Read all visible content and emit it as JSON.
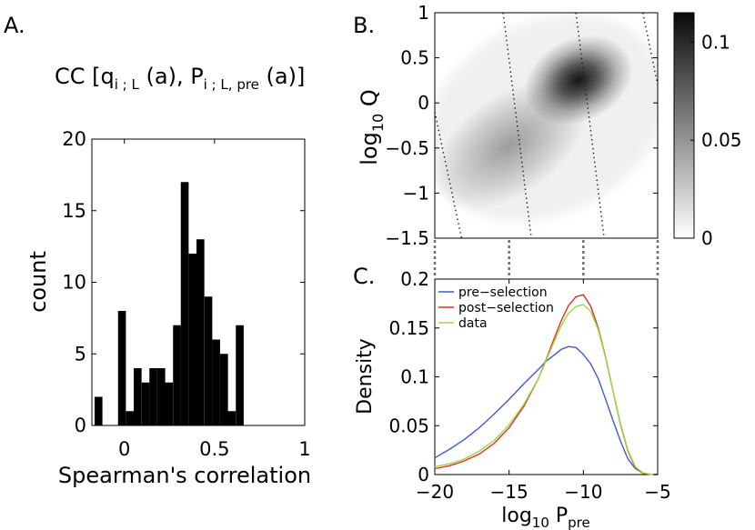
{
  "panel_labels": {
    "a": "A.",
    "b": "B.",
    "c": "C."
  },
  "panel_a_title": {
    "prefix": "CC [q",
    "sub1": "i ; L",
    "mid": " (a), P",
    "sub2": "i ; L,  pre",
    "suffix": " (a)]"
  },
  "colors": {
    "bars": "#000000",
    "pre": "#3b5bdb",
    "post": "#e8301c",
    "data": "#9ad94a",
    "guide": "#707070"
  },
  "chart_data": [
    {
      "id": "panel-a",
      "type": "bar",
      "title": "CC [q i;L (a), P i;L, pre (a)]",
      "xlabel": "Spearman's correlation",
      "ylabel": "count",
      "xlim": [
        -0.18,
        1.0
      ],
      "ylim": [
        0,
        20
      ],
      "xticks": [
        0,
        0.5,
        1
      ],
      "xtick_labels": [
        "0",
        "0.5",
        "1"
      ],
      "yticks": [
        0,
        5,
        10,
        15,
        20
      ],
      "ytick_labels": [
        "0",
        "5",
        "10",
        "15",
        "20"
      ],
      "bin_width": 0.0435,
      "bin_starts": [
        -0.165,
        -0.122,
        -0.078,
        -0.035,
        0.009,
        0.052,
        0.096,
        0.139,
        0.183,
        0.226,
        0.27,
        0.313,
        0.357,
        0.4,
        0.444,
        0.487,
        0.531,
        0.574,
        0.618,
        0.661,
        0.705
      ],
      "values": [
        2,
        0,
        0,
        8,
        1,
        4,
        3,
        4,
        4,
        3,
        7,
        17,
        12,
        13,
        9,
        6,
        5,
        1,
        7,
        0,
        0
      ]
    },
    {
      "id": "panel-b",
      "type": "heatmap",
      "xlabel": "",
      "ylabel": "log10 Q",
      "ylabel_base": "log",
      "ylabel_sub": "10",
      "ylabel_var": " Q",
      "xlim": [
        -20,
        -5
      ],
      "ylim": [
        -1.5,
        1
      ],
      "yticks": [
        1,
        0.5,
        0,
        -0.5,
        -1,
        -1.5
      ],
      "ytick_labels": [
        "1",
        "0.5",
        "0",
        "−0.5",
        "−1",
        "−1.5"
      ],
      "colorbar": {
        "range": [
          0,
          0.115
        ],
        "ticks": [
          0,
          0.05,
          0.1
        ],
        "tick_labels": [
          "0",
          "0.05",
          "0.1"
        ],
        "colormap": "white-to-black"
      },
      "density_peak": {
        "x": -11.4,
        "y": 0.3,
        "max": 0.115
      },
      "isolines_xy": [
        [
          [
            -20,
            -0.1
          ],
          [
            -18.2,
            -1.5
          ]
        ],
        [
          [
            -15.4,
            1
          ],
          [
            -13.5,
            -1.5
          ]
        ],
        [
          [
            -10.5,
            1
          ],
          [
            -8.6,
            -1.5
          ]
        ],
        [
          [
            -6.0,
            1
          ],
          [
            -5,
            0.2
          ]
        ]
      ]
    },
    {
      "id": "panel-c",
      "type": "line",
      "xlabel": "log10 P pre",
      "xlabel_base": "log",
      "xlabel_sub": "10",
      "xlabel_var": "  P",
      "xlabel_var_sub": "pre",
      "ylabel": "Density",
      "xlim": [
        -20,
        -5
      ],
      "ylim": [
        0,
        0.2
      ],
      "xticks": [
        -20,
        -15,
        -10,
        -5
      ],
      "xtick_labels": [
        "−20",
        "−15",
        "−10",
        "−5"
      ],
      "yticks": [
        0,
        0.05,
        0.1,
        0.15,
        0.2
      ],
      "ytick_labels": [
        "0",
        "0.05",
        "0.1",
        "0.15",
        "0.2"
      ],
      "x": [
        -20,
        -19,
        -18,
        -17,
        -16,
        -15,
        -14,
        -13,
        -12.5,
        -12,
        -11.5,
        -11,
        -10.5,
        -10,
        -9.5,
        -9,
        -8.5,
        -8,
        -7.5,
        -7,
        -6.5,
        -6,
        -5.5,
        -5
      ],
      "series": [
        {
          "name": "pre−selection",
          "key": "pre",
          "values": [
            0.017,
            0.026,
            0.036,
            0.048,
            0.062,
            0.077,
            0.093,
            0.108,
            0.116,
            0.122,
            0.128,
            0.131,
            0.13,
            0.123,
            0.113,
            0.098,
            0.077,
            0.055,
            0.034,
            0.016,
            0.006,
            0.0015,
            0.0003,
            0.0
          ]
        },
        {
          "name": "post−selection",
          "key": "post",
          "values": [
            0.006,
            0.009,
            0.014,
            0.021,
            0.032,
            0.048,
            0.07,
            0.099,
            0.118,
            0.138,
            0.157,
            0.173,
            0.182,
            0.184,
            0.172,
            0.15,
            0.12,
            0.085,
            0.051,
            0.024,
            0.007,
            0.0015,
            0.0003,
            0.0
          ]
        },
        {
          "name": "data",
          "key": "data",
          "values": [
            0.008,
            0.011,
            0.016,
            0.024,
            0.035,
            0.051,
            0.072,
            0.099,
            0.117,
            0.135,
            0.152,
            0.165,
            0.172,
            0.174,
            0.167,
            0.148,
            0.119,
            0.085,
            0.052,
            0.025,
            0.008,
            0.0018,
            0.0004,
            0.0
          ]
        }
      ]
    }
  ]
}
